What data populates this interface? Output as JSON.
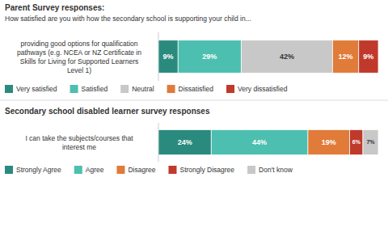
{
  "chart_data": [
    {
      "type": "bar",
      "orientation": "horizontal",
      "stacked": true,
      "title": "Parent Survey responses:",
      "subtitle": "How satisfied are you with how the secondary school is supporting your child in...",
      "categories": [
        "providing good options for qualification\npathways (e.g. NCEA or NZ Certificate in\nSkills for Living for Supported Learners\nLevel 1)"
      ],
      "series": [
        {
          "name": "Very satisfied",
          "color": "#2a8a7e",
          "values": [
            9
          ],
          "value_labels": [
            "9%"
          ]
        },
        {
          "name": "Satisfied",
          "color": "#4dbfb0",
          "values": [
            29
          ],
          "value_labels": [
            "29%"
          ]
        },
        {
          "name": "Neutral",
          "color": "#c8c8c8",
          "values": [
            42
          ],
          "value_labels": [
            "42%"
          ]
        },
        {
          "name": "Dissatisfied",
          "color": "#e07b39",
          "values": [
            12
          ],
          "value_labels": [
            "12%"
          ]
        },
        {
          "name": "Very dissatisfied",
          "color": "#c0392b",
          "values": [
            9
          ],
          "value_labels": [
            "9%"
          ]
        }
      ],
      "xlim": [
        0,
        101
      ],
      "data_labels": true,
      "tick_labels": "y",
      "legend": "bottom"
    },
    {
      "type": "bar",
      "orientation": "horizontal",
      "stacked": true,
      "title": "Secondary school disabled learner survey responses",
      "categories": [
        "I can take the subjects/courses that\ninterest me"
      ],
      "series": [
        {
          "name": "Strongly Agree",
          "color": "#2a8a7e",
          "values": [
            24
          ],
          "value_labels": [
            "24%"
          ]
        },
        {
          "name": "Agree",
          "color": "#4dbfb0",
          "values": [
            44
          ],
          "value_labels": [
            "44%"
          ]
        },
        {
          "name": "Disagree",
          "color": "#e07b39",
          "values": [
            19
          ],
          "value_labels": [
            "19%"
          ]
        },
        {
          "name": "Strongly Disagree",
          "color": "#c0392b",
          "values": [
            6
          ],
          "value_labels": [
            "6%"
          ]
        },
        {
          "name": "Don't know",
          "color": "#c8c8c8",
          "values": [
            7
          ],
          "value_labels": [
            "7%"
          ]
        }
      ],
      "xlim": [
        0,
        100
      ],
      "data_labels": true,
      "tick_labels": "y",
      "legend": "bottom"
    }
  ]
}
